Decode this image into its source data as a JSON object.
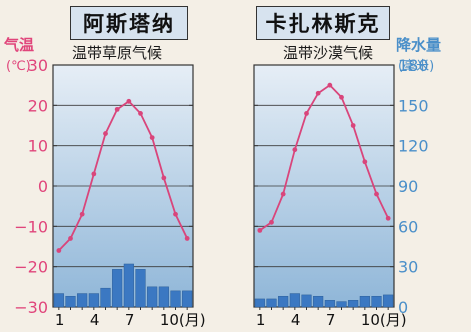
{
  "colors": {
    "temperature": "#d9457b",
    "temperature_axis": "#e0457b",
    "precipitation": "#3b78c2",
    "precipitation_axis": "#4a8fc9",
    "plot_top": "#e6eef6",
    "plot_bottom": "#8fb6d8"
  },
  "left_axis": {
    "title": "气温",
    "unit": "(℃)"
  },
  "right_axis": {
    "title": "降水量",
    "unit": "(毫米)"
  },
  "chart_data": [
    {
      "type": "bar+line",
      "title": "阿斯塔纳",
      "subtitle": "温带草原气候",
      "x": [
        1,
        2,
        3,
        4,
        5,
        6,
        7,
        8,
        9,
        10,
        11,
        12
      ],
      "x_tick_labels": [
        "1",
        "4",
        "7",
        "10(月)"
      ],
      "series": [
        {
          "kind": "line",
          "axis": "left",
          "values": [
            -16,
            -13,
            -7,
            3,
            13,
            19,
            21,
            18,
            12,
            2,
            -7,
            -13
          ]
        },
        {
          "kind": "bar",
          "axis": "right",
          "values": [
            10,
            8,
            10,
            10,
            14,
            28,
            32,
            28,
            15,
            15,
            12,
            12
          ]
        }
      ],
      "left_axis": {
        "ylim": [
          -30,
          30
        ],
        "ticks": [
          30,
          20,
          10,
          0,
          -10,
          -20,
          -30
        ]
      },
      "right_axis": {
        "ylim": [
          0,
          180
        ],
        "ticks": [
          180,
          150,
          120,
          90,
          60,
          30,
          0
        ]
      }
    },
    {
      "type": "bar+line",
      "title": "卡扎林斯克",
      "subtitle": "温带沙漠气候",
      "x": [
        1,
        2,
        3,
        4,
        5,
        6,
        7,
        8,
        9,
        10,
        11,
        12
      ],
      "x_tick_labels": [
        "1",
        "4",
        "7",
        "10(月)"
      ],
      "series": [
        {
          "kind": "line",
          "axis": "left",
          "values": [
            -11,
            -9,
            -2,
            9,
            18,
            23,
            25,
            22,
            15,
            6,
            -2,
            -8
          ]
        },
        {
          "kind": "bar",
          "axis": "right",
          "values": [
            6,
            6,
            8,
            10,
            9,
            8,
            5,
            4,
            5,
            8,
            8,
            9
          ]
        }
      ],
      "left_axis": {
        "ylim": [
          -30,
          30
        ],
        "ticks": [
          30,
          20,
          10,
          0,
          -10,
          -20,
          -30
        ]
      },
      "right_axis": {
        "ylim": [
          0,
          180
        ],
        "ticks": [
          180,
          150,
          120,
          90,
          60,
          30,
          0
        ]
      }
    }
  ]
}
